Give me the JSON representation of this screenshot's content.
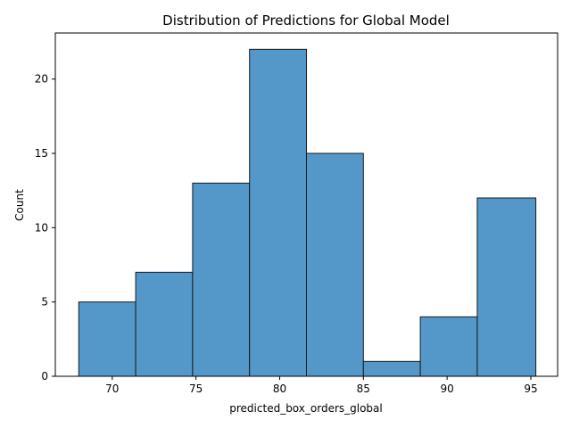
{
  "chart_data": {
    "type": "bar",
    "title": "Distribution of Predictions for Global Model",
    "xlabel": "predicted_box_orders_global",
    "ylabel": "Count",
    "bins": [
      {
        "start": 68.0,
        "end": 71.4,
        "count": 5
      },
      {
        "start": 71.4,
        "end": 74.8,
        "count": 7
      },
      {
        "start": 74.8,
        "end": 78.2,
        "count": 13
      },
      {
        "start": 78.2,
        "end": 81.6,
        "count": 22
      },
      {
        "start": 81.6,
        "end": 85.0,
        "count": 15
      },
      {
        "start": 85.0,
        "end": 88.4,
        "count": 1
      },
      {
        "start": 88.4,
        "end": 91.8,
        "count": 4
      },
      {
        "start": 91.8,
        "end": 95.3,
        "count": 12
      }
    ],
    "xlim": [
      66.6,
      96.6
    ],
    "ylim": [
      0,
      23.1
    ],
    "xticks": [
      70,
      75,
      80,
      85,
      90,
      95
    ],
    "yticks": [
      0,
      5,
      10,
      15,
      20
    ],
    "grid": false,
    "legend": "none",
    "bar_color": "#5498c9",
    "edge_color": "#1a1a1a"
  }
}
